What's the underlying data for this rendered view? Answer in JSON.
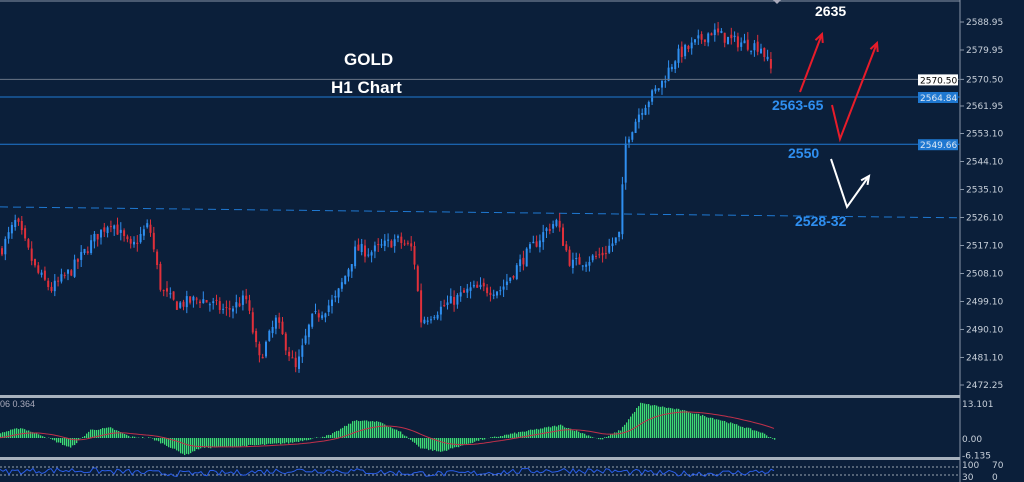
{
  "title": "GOLD",
  "subtitle": "H1 Chart",
  "annotations": {
    "target_top": "2635",
    "level1": "2563-65",
    "level2": "2550",
    "level3": "2528-32"
  },
  "macd_label": "06 0.364",
  "colors": {
    "background": "#0b1f3a",
    "bull": "#2f8ff0",
    "bear": "#e0303a",
    "histogram": "#3ddc74",
    "signal": "#c0304a",
    "level_line": "#1f78d1",
    "arrow_red": "#e81c2a",
    "arrow_white": "#ffffff"
  },
  "chart_data": [
    {
      "type": "candlestick",
      "title": "GOLD H1 Chart",
      "y_ticks": [
        "2588.95",
        "2579.95",
        "2570.50",
        "2561.95",
        "2553.10",
        "2544.10",
        "2535.10",
        "2526.10",
        "2517.10",
        "2508.10",
        "2499.10",
        "2490.10",
        "2481.10",
        "2472.25"
      ],
      "ylim": [
        2468,
        2596
      ],
      "price_badges": [
        {
          "label": "2570.50",
          "value": 2570.5,
          "style": "white"
        },
        {
          "label": "2564.84",
          "value": 2564.84,
          "style": "blue"
        },
        {
          "label": "2549.66",
          "value": 2549.66,
          "style": "blue"
        }
      ],
      "trendline": {
        "style": "dashed",
        "start": 2529.5,
        "end": 2526
      },
      "close_path": [
        [
          0,
          2515.6
        ],
        [
          15,
          2525
        ],
        [
          35,
          2509
        ],
        [
          50,
          2503
        ],
        [
          70,
          2509
        ],
        [
          95,
          2520
        ],
        [
          110,
          2525
        ],
        [
          130,
          2516
        ],
        [
          148,
          2524
        ],
        [
          160,
          2503
        ],
        [
          175,
          2498
        ],
        [
          200,
          2500
        ],
        [
          225,
          2496
        ],
        [
          245,
          2500
        ],
        [
          258,
          2480
        ],
        [
          275,
          2493
        ],
        [
          295,
          2477
        ],
        [
          310,
          2493
        ],
        [
          335,
          2500
        ],
        [
          355,
          2516
        ],
        [
          370,
          2515
        ],
        [
          395,
          2519
        ],
        [
          412,
          2516
        ],
        [
          420,
          2493
        ],
        [
          445,
          2498
        ],
        [
          470,
          2503
        ],
        [
          500,
          2503
        ],
        [
          520,
          2512
        ],
        [
          545,
          2522
        ],
        [
          555,
          2525
        ],
        [
          570,
          2511
        ],
        [
          600,
          2514
        ],
        [
          618,
          2520
        ],
        [
          625,
          2551
        ],
        [
          640,
          2561
        ],
        [
          660,
          2569
        ],
        [
          675,
          2578
        ],
        [
          690,
          2581
        ],
        [
          710,
          2586
        ],
        [
          730,
          2583
        ],
        [
          760,
          2581
        ],
        [
          772,
          2572
        ]
      ]
    },
    {
      "type": "bar",
      "indicator": "MACD",
      "y_ticks": [
        "13.101",
        "0.00",
        "-6.135"
      ],
      "ylim": [
        -7,
        14
      ],
      "histogram_path": [
        [
          0,
          1.9
        ],
        [
          20,
          3.8
        ],
        [
          40,
          1.2
        ],
        [
          70,
          -3.7
        ],
        [
          90,
          3
        ],
        [
          110,
          3.8
        ],
        [
          130,
          0.4
        ],
        [
          150,
          0
        ],
        [
          165,
          -2.6
        ],
        [
          185,
          -6.4
        ],
        [
          200,
          -3.7
        ],
        [
          230,
          -3.3
        ],
        [
          260,
          -2.6
        ],
        [
          290,
          -1.8
        ],
        [
          330,
          1.1
        ],
        [
          355,
          6.7
        ],
        [
          380,
          5.9
        ],
        [
          400,
          2.2
        ],
        [
          420,
          -3.7
        ],
        [
          440,
          -5.2
        ],
        [
          480,
          -0.7
        ],
        [
          520,
          2.2
        ],
        [
          560,
          4.8
        ],
        [
          600,
          -0.7
        ],
        [
          620,
          3
        ],
        [
          640,
          13
        ],
        [
          680,
          10.5
        ],
        [
          720,
          6.7
        ],
        [
          760,
          2.2
        ],
        [
          775,
          -0.7
        ]
      ]
    },
    {
      "type": "line",
      "indicator": "oscillator",
      "y_ticks": [
        "100",
        "70",
        "30",
        "0"
      ],
      "ylim": [
        0,
        100
      ],
      "levels": [
        70,
        30
      ]
    }
  ]
}
